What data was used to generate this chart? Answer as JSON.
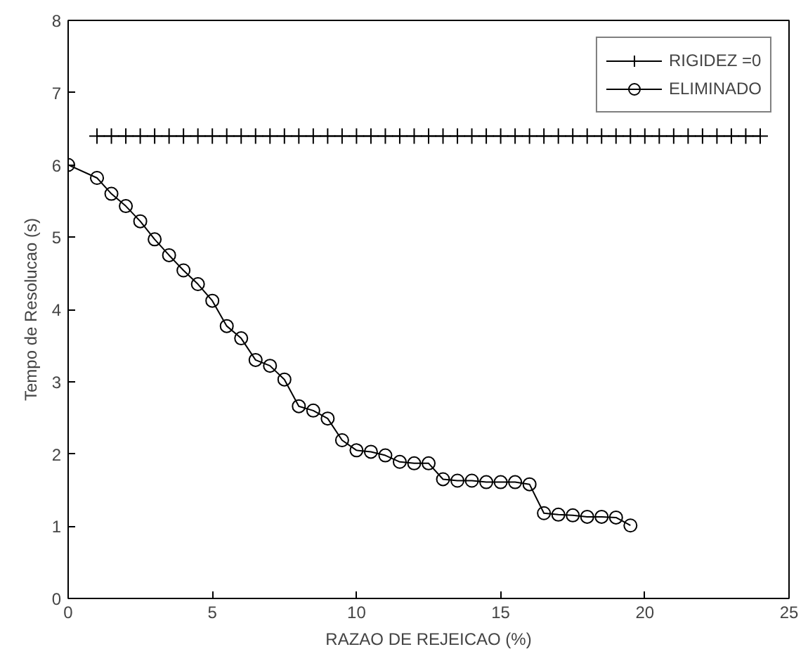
{
  "chart_data": {
    "type": "line",
    "xlabel": "RAZAO DE REJEICAO (%)",
    "ylabel": "Tempo de Resolucao (s)",
    "xlim": [
      0,
      25
    ],
    "ylim": [
      0,
      8
    ],
    "xticks": [
      0,
      5,
      10,
      15,
      20,
      25
    ],
    "yticks": [
      0,
      1,
      2,
      3,
      4,
      5,
      6,
      7,
      8
    ],
    "grid": false,
    "legend": "top right",
    "series": [
      {
        "name": "RIGIDEZ =0",
        "color": "#000000",
        "marker": "cross",
        "x": [
          1,
          1.5,
          2,
          2.5,
          3,
          3.5,
          4,
          4.5,
          5,
          5.5,
          6,
          6.5,
          7,
          7.5,
          8,
          8.5,
          9,
          9.5,
          10,
          10.5,
          11,
          11.5,
          12,
          12.5,
          13,
          13.5,
          14,
          14.5,
          15,
          15.5,
          16,
          16.5,
          17,
          17.5,
          18,
          18.5,
          19,
          19.5,
          20,
          20.5,
          21,
          21.5,
          22,
          22.5,
          23,
          23.5,
          24
        ],
        "values": [
          6.4,
          6.4,
          6.4,
          6.4,
          6.4,
          6.4,
          6.4,
          6.4,
          6.4,
          6.4,
          6.4,
          6.4,
          6.4,
          6.4,
          6.4,
          6.4,
          6.4,
          6.4,
          6.4,
          6.4,
          6.4,
          6.4,
          6.4,
          6.4,
          6.4,
          6.4,
          6.4,
          6.4,
          6.4,
          6.4,
          6.4,
          6.4,
          6.4,
          6.4,
          6.4,
          6.4,
          6.4,
          6.4,
          6.4,
          6.4,
          6.4,
          6.4,
          6.4,
          6.4,
          6.4,
          6.4,
          6.4
        ]
      },
      {
        "name": "ELIMINADO",
        "color": "#000000",
        "marker": "circle",
        "x": [
          0,
          1,
          1.5,
          2,
          2.5,
          3,
          3.5,
          4,
          4.5,
          5,
          5.5,
          6,
          6.5,
          7,
          7.5,
          8,
          8.5,
          9,
          9.5,
          10,
          10.5,
          11,
          11.5,
          12,
          12.5,
          13,
          13.5,
          14,
          14.5,
          15,
          15.5,
          16,
          16.5,
          17,
          17.5,
          18,
          18.5,
          19,
          19.5
        ],
        "values": [
          6.0,
          5.82,
          5.6,
          5.43,
          5.22,
          4.97,
          4.75,
          4.54,
          4.35,
          4.12,
          3.77,
          3.6,
          3.3,
          3.22,
          3.03,
          2.66,
          2.6,
          2.49,
          2.19,
          2.05,
          2.03,
          1.98,
          1.89,
          1.87,
          1.87,
          1.65,
          1.63,
          1.63,
          1.61,
          1.61,
          1.61,
          1.58,
          1.18,
          1.16,
          1.15,
          1.13,
          1.13,
          1.12,
          1.01
        ]
      }
    ]
  }
}
